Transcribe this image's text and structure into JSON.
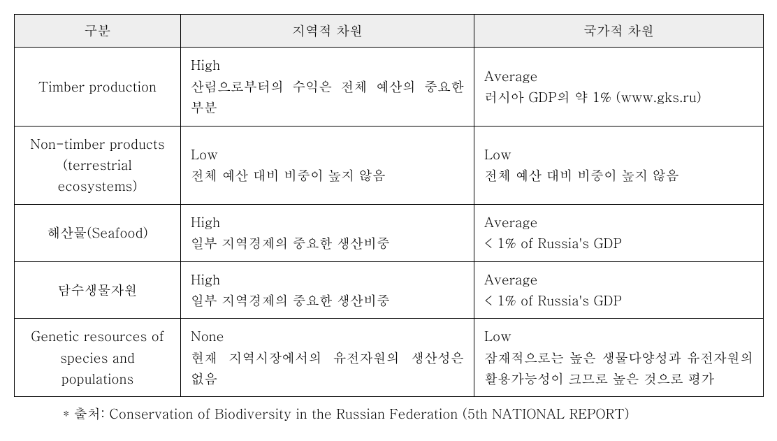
{
  "table": {
    "headers": {
      "col1": "구분",
      "col2": "지역적 차원",
      "col3": "국가적 차원"
    },
    "rows": [
      {
        "label": "Timber production",
        "regional_level": "High",
        "regional_desc": "산림으로부터의 수익은 전체 예산의 중요한 부분",
        "national_level": "Average",
        "national_desc": "러시아 GDP의 약 1% (www.gks.ru)"
      },
      {
        "label": "Non-timber products (terrestrial ecosystems)",
        "regional_level": "Low",
        "regional_desc": "전체 예산 대비 비중이 높지 않음",
        "national_level": "Low",
        "national_desc": "전체 예산 대비 비중이 높지 않음"
      },
      {
        "label": "해산물(Seafood)",
        "regional_level": "High",
        "regional_desc": "일부 지역경제의 중요한 생산비중",
        "national_level": "Average",
        "national_desc": "< 1% of Russia's GDP"
      },
      {
        "label": "담수생물자원",
        "regional_level": "High",
        "regional_desc": "일부 지역경제의 중요한 생산비중",
        "national_level": "Average",
        "national_desc": "< 1% of Russia's GDP"
      },
      {
        "label": "Genetic resources of species and populations",
        "regional_level": "None",
        "regional_desc": "현재 지역시장에서의 유전자원의 생산성은 없음",
        "national_level": "Low",
        "national_desc": "잠재적으로는 높은 생물다양성과 유전자원의 활용가능성이 크므로 높은 것으로 평가"
      }
    ]
  },
  "source": {
    "prefix": "* 출처: ",
    "text": "Conservation of Biodiversity in the Russian Federation (5th NATIONAL REPORT)"
  }
}
